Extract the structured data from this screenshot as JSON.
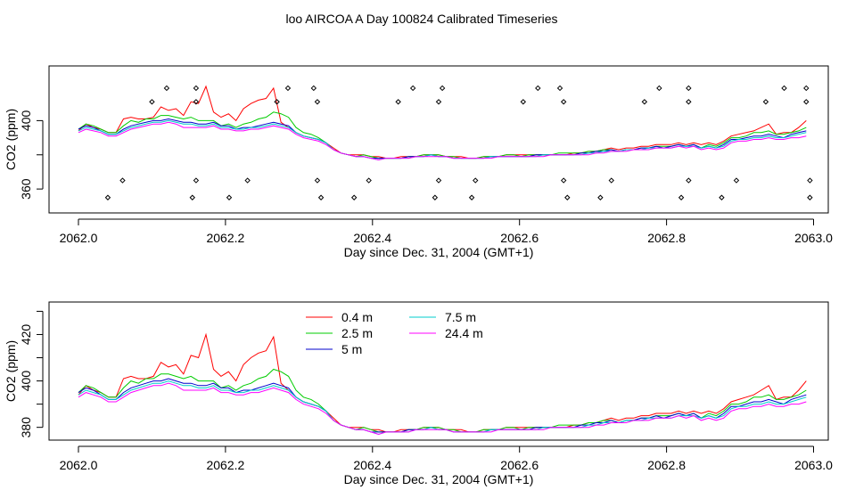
{
  "figure": {
    "title": "loo AIRCOA A  Day 100824  Calibrated Timeseries"
  },
  "colors": {
    "0.4 m": "#ff0000",
    "2.5 m": "#00cc00",
    "5 m": "#0000cc",
    "7.5 m": "#00cccc",
    "24.4 m": "#ff00ff"
  },
  "chart_data": [
    {
      "type": "scatter",
      "xlabel": "Day since Dec. 31, 2004 (GMT+1)",
      "ylabel": "CO2 (ppm)",
      "xlim": [
        2061.96,
        2063.02
      ],
      "ylim": [
        346,
        432
      ],
      "xticks": [
        "2062.0",
        "2062.2",
        "2062.4",
        "2062.6",
        "2062.8",
        "2063.0"
      ],
      "xtick_values": [
        2062.0,
        2062.2,
        2062.4,
        2062.6,
        2062.8,
        2063.0
      ],
      "yticks": [
        "360",
        "400"
      ],
      "ytick_values": [
        360,
        400
      ],
      "minor_yticks": [
        380
      ],
      "lines": [
        {
          "name": "0.4 m",
          "color": "#ff0000",
          "y": [
            394,
            398,
            396,
            395,
            393,
            393,
            401,
            402,
            401,
            401,
            402,
            408,
            406,
            407,
            403,
            411,
            410,
            420,
            405,
            402,
            404,
            400,
            407,
            410,
            412,
            413,
            419,
            399,
            396,
            393,
            391,
            390,
            389,
            387,
            384,
            381,
            380,
            380,
            380,
            379,
            379,
            378,
            378,
            379,
            379,
            379,
            380,
            380,
            380,
            379,
            379,
            379,
            378,
            378,
            379,
            379,
            379,
            380,
            380,
            380,
            380,
            380,
            380,
            380,
            380,
            380,
            381,
            381,
            382,
            382,
            383,
            384,
            383,
            384,
            384,
            385,
            385,
            386,
            386,
            386,
            387,
            386,
            387,
            386,
            387,
            386,
            388,
            391,
            392,
            393,
            394,
            396,
            398,
            392,
            393,
            393,
            396,
            400
          ]
        },
        {
          "name": "2.5 m",
          "color": "#00cc00",
          "y": [
            395,
            398,
            397,
            395,
            393,
            393,
            397,
            400,
            399,
            401,
            401,
            403,
            403,
            402,
            401,
            402,
            400,
            400,
            400,
            397,
            398,
            396,
            398,
            399,
            401,
            402,
            405,
            404,
            402,
            396,
            393,
            392,
            390,
            387,
            383,
            381,
            380,
            379,
            380,
            379,
            378,
            378,
            378,
            378,
            379,
            379,
            380,
            380,
            380,
            379,
            379,
            378,
            378,
            378,
            379,
            379,
            379,
            380,
            380,
            379,
            380,
            380,
            380,
            380,
            381,
            381,
            381,
            381,
            382,
            382,
            383,
            383,
            382,
            383,
            383,
            384,
            384,
            385,
            385,
            385,
            386,
            385,
            386,
            384,
            386,
            385,
            387,
            390,
            390,
            391,
            393,
            393,
            394,
            392,
            392,
            393,
            394,
            396
          ]
        },
        {
          "name": "5 m",
          "color": "#0000cc",
          "y": [
            395,
            397,
            396,
            394,
            392,
            392,
            395,
            397,
            398,
            399,
            400,
            400,
            401,
            400,
            399,
            399,
            398,
            398,
            399,
            397,
            397,
            395,
            396,
            396,
            397,
            398,
            399,
            398,
            397,
            393,
            391,
            390,
            389,
            387,
            383,
            381,
            380,
            379,
            379,
            378,
            378,
            378,
            378,
            378,
            379,
            379,
            379,
            380,
            379,
            379,
            378,
            378,
            378,
            378,
            378,
            379,
            379,
            379,
            379,
            379,
            379,
            380,
            380,
            380,
            380,
            380,
            380,
            381,
            381,
            382,
            382,
            383,
            382,
            383,
            383,
            384,
            384,
            385,
            384,
            385,
            386,
            385,
            386,
            384,
            385,
            384,
            386,
            389,
            389,
            390,
            391,
            391,
            392,
            391,
            390,
            392,
            393,
            394
          ]
        },
        {
          "name": "7.5 m",
          "color": "#00cccc",
          "y": [
            394,
            396,
            395,
            394,
            392,
            392,
            394,
            396,
            397,
            398,
            399,
            399,
            400,
            399,
            398,
            398,
            397,
            397,
            398,
            396,
            396,
            395,
            395,
            396,
            396,
            397,
            398,
            397,
            396,
            393,
            391,
            390,
            389,
            387,
            383,
            381,
            380,
            379,
            379,
            378,
            377,
            378,
            378,
            378,
            378,
            379,
            379,
            380,
            379,
            379,
            378,
            378,
            378,
            378,
            378,
            379,
            379,
            379,
            379,
            379,
            379,
            379,
            380,
            380,
            380,
            380,
            380,
            380,
            381,
            381,
            382,
            382,
            382,
            383,
            383,
            383,
            384,
            384,
            384,
            384,
            385,
            385,
            385,
            384,
            385,
            384,
            385,
            388,
            389,
            389,
            390,
            390,
            391,
            390,
            390,
            391,
            392,
            393
          ]
        },
        {
          "name": "24.4 m",
          "color": "#ff00ff",
          "y": [
            393,
            395,
            394,
            393,
            391,
            391,
            393,
            395,
            396,
            397,
            398,
            398,
            399,
            398,
            396,
            396,
            396,
            396,
            397,
            395,
            395,
            394,
            394,
            395,
            395,
            396,
            397,
            396,
            395,
            392,
            390,
            389,
            388,
            386,
            383,
            381,
            380,
            379,
            379,
            378,
            377,
            378,
            378,
            378,
            378,
            379,
            379,
            379,
            379,
            379,
            378,
            378,
            378,
            378,
            378,
            378,
            379,
            379,
            379,
            379,
            379,
            379,
            379,
            380,
            380,
            380,
            380,
            380,
            380,
            381,
            381,
            382,
            382,
            382,
            383,
            383,
            383,
            384,
            384,
            384,
            385,
            384,
            385,
            383,
            384,
            383,
            384,
            387,
            388,
            388,
            389,
            389,
            390,
            389,
            389,
            390,
            390,
            391
          ]
        }
      ],
      "flag_points": {
        "x": [
          2062.12,
          2062.16,
          2062.285,
          2062.32,
          2062.455,
          2062.495,
          2062.625,
          2062.655,
          2062.79,
          2062.83,
          2062.96,
          2062.99,
          2062.1,
          2062.16,
          2062.27,
          2062.325,
          2062.435,
          2062.49,
          2062.605,
          2062.66,
          2062.77,
          2062.83,
          2062.935,
          2062.99,
          2062.06,
          2062.16,
          2062.23,
          2062.325,
          2062.395,
          2062.49,
          2062.54,
          2062.66,
          2062.725,
          2062.83,
          2062.895,
          2062.995,
          2062.04,
          2062.155,
          2062.205,
          2062.33,
          2062.375,
          2062.485,
          2062.535,
          2062.665,
          2062.71,
          2062.82,
          2062.875,
          2062.995
        ],
        "y": [
          419,
          419,
          419,
          419,
          419,
          419,
          419,
          419,
          419,
          419,
          419,
          419,
          411,
          411,
          411,
          411,
          411,
          411,
          411,
          411,
          411,
          411,
          411,
          411,
          365,
          365,
          365,
          365,
          365,
          365,
          365,
          365,
          365,
          365,
          365,
          365,
          355,
          355,
          355,
          355,
          355,
          355,
          355,
          355,
          355,
          355,
          355,
          355
        ]
      }
    },
    {
      "type": "line",
      "xlabel": "Day since Dec. 31, 2004 (GMT+1)",
      "ylabel": "CO2 (ppm)",
      "xlim": [
        2061.96,
        2063.02
      ],
      "ylim": [
        374.5,
        434
      ],
      "xticks": [
        "2062.0",
        "2062.2",
        "2062.4",
        "2062.6",
        "2062.8",
        "2063.0"
      ],
      "xtick_values": [
        2062.0,
        2062.2,
        2062.4,
        2062.6,
        2062.8,
        2063.0
      ],
      "yticks": [
        "380",
        "400",
        "420"
      ],
      "ytick_values": [
        380,
        400,
        420
      ],
      "minor_yticks": [
        390,
        410,
        430
      ],
      "legend_labels": [
        "0.4 m",
        "2.5 m",
        "5 m",
        "7.5 m",
        "24.4 m"
      ]
    }
  ]
}
